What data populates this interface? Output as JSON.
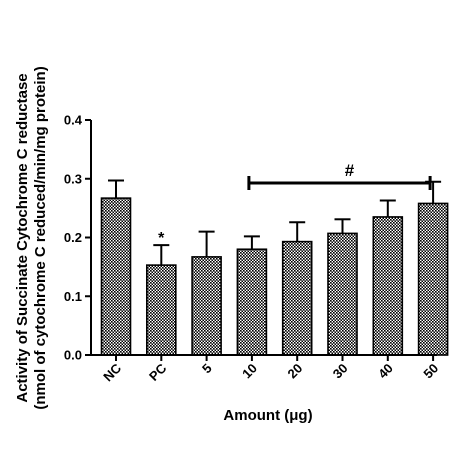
{
  "chart_data": {
    "type": "bar",
    "categories": [
      "NC",
      "PC",
      "5",
      "10",
      "20",
      "30",
      "40",
      "50"
    ],
    "values": [
      0.267,
      0.153,
      0.167,
      0.18,
      0.193,
      0.207,
      0.235,
      0.258
    ],
    "errors": [
      0.03,
      0.034,
      0.043,
      0.022,
      0.033,
      0.024,
      0.028,
      0.037
    ],
    "significance": {
      "star": {
        "category": "PC",
        "label": "*"
      },
      "bracket": {
        "from": "10",
        "to": "50",
        "label": "#"
      }
    },
    "xlabel": "Amount (μg)",
    "ylabel_line1": "Activity of Succinate Cytochrome C reductase",
    "ylabel_line2": "(nmol of cytochrome C reduced/min/mg protein)",
    "ylim": [
      0,
      0.4
    ],
    "yticks": [
      "0.0",
      "0.1",
      "0.2",
      "0.3",
      "0.4"
    ],
    "grid": false,
    "bar_fill": "dotted-pattern",
    "colors": {
      "ink": "#000000",
      "bar_dots": "#000000",
      "background": "#ffffff"
    }
  }
}
